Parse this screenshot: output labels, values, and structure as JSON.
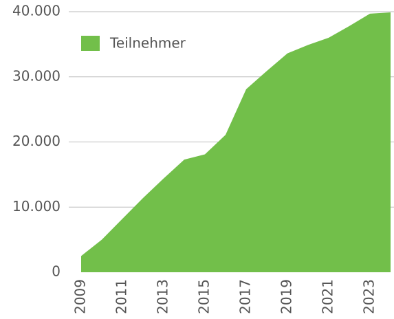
{
  "chart_data": {
    "type": "area",
    "x": [
      2009,
      2010,
      2011,
      2012,
      2013,
      2014,
      2015,
      2016,
      2017,
      2018,
      2019,
      2020,
      2021,
      2022,
      2023,
      2024
    ],
    "series": [
      {
        "name": "Teilnehmer",
        "color": "#72bf4a",
        "values": [
          2500,
          5000,
          8200,
          11400,
          14400,
          17300,
          18100,
          21100,
          28100,
          30900,
          33600,
          34900,
          36000,
          37800,
          39700,
          39900
        ]
      }
    ],
    "xlim": [
      2009,
      2024
    ],
    "xticks": [
      2009,
      2011,
      2013,
      2015,
      2017,
      2019,
      2021,
      2023
    ],
    "ylim": [
      0,
      40000
    ],
    "yticks": [
      0,
      {
        "value": 10000,
        "label": "10.000"
      },
      {
        "value": 20000,
        "label": "20.000"
      },
      {
        "value": 30000,
        "label": "30.000"
      },
      {
        "value": 40000,
        "label": "40.000"
      }
    ],
    "grid": true,
    "legend": "upper left"
  }
}
